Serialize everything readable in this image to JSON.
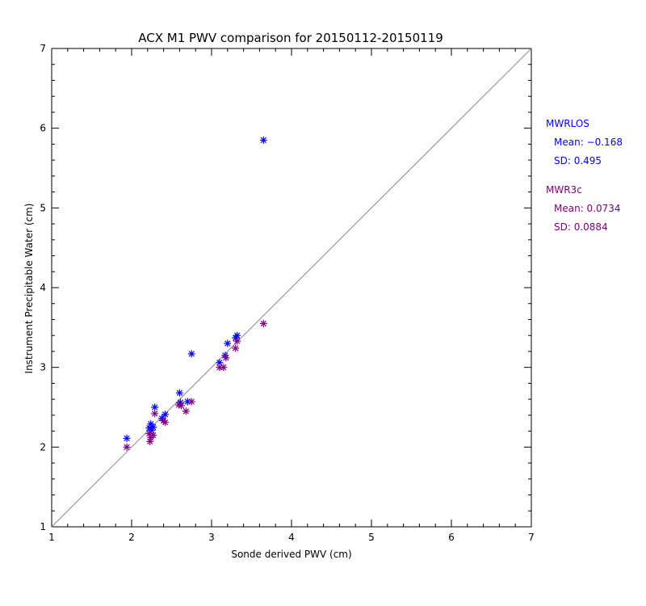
{
  "chart_data": {
    "type": "scatter",
    "title": "ACX M1 PWV comparison for 20150112-20150119",
    "xlabel": "Sonde derived PWV (cm)",
    "ylabel": "Instrument Precipitable Water (cm)",
    "xlim": [
      1,
      7
    ],
    "ylim": [
      1,
      7
    ],
    "xticks": [
      "1",
      "2",
      "3",
      "4",
      "5",
      "6",
      "7"
    ],
    "yticks": [
      "1",
      "2",
      "3",
      "4",
      "5",
      "6",
      "7"
    ],
    "reference_line": "1:1",
    "series": [
      {
        "name": "MWRLOS",
        "color": "#0000ff",
        "marker": "asterisk",
        "points": [
          [
            1.94,
            2.11
          ],
          [
            2.22,
            2.24
          ],
          [
            2.24,
            2.29
          ],
          [
            2.25,
            2.21
          ],
          [
            2.27,
            2.25
          ],
          [
            2.29,
            2.5
          ],
          [
            2.38,
            2.36
          ],
          [
            2.42,
            2.41
          ],
          [
            2.6,
            2.68
          ],
          [
            2.61,
            2.56
          ],
          [
            2.7,
            2.57
          ],
          [
            2.75,
            3.17
          ],
          [
            3.1,
            3.06
          ],
          [
            3.17,
            3.15
          ],
          [
            3.2,
            3.3
          ],
          [
            3.3,
            3.37
          ],
          [
            3.32,
            3.4
          ],
          [
            3.65,
            5.85
          ]
        ]
      },
      {
        "name": "MWR3c",
        "color": "#800080",
        "marker": "asterisk",
        "points": [
          [
            1.94,
            2.0
          ],
          [
            2.22,
            2.17
          ],
          [
            2.23,
            2.07
          ],
          [
            2.24,
            2.12
          ],
          [
            2.27,
            2.15
          ],
          [
            2.29,
            2.42
          ],
          [
            2.4,
            2.33
          ],
          [
            2.42,
            2.31
          ],
          [
            2.59,
            2.53
          ],
          [
            2.62,
            2.52
          ],
          [
            2.68,
            2.45
          ],
          [
            2.75,
            2.57
          ],
          [
            3.1,
            3.0
          ],
          [
            3.15,
            3.0
          ],
          [
            3.18,
            3.12
          ],
          [
            3.3,
            3.24
          ],
          [
            3.32,
            3.33
          ],
          [
            3.65,
            3.55
          ]
        ]
      }
    ]
  },
  "stats": {
    "mwrlos": {
      "name": "MWRLOS",
      "mean": "Mean: −0.168",
      "sd": "SD: 0.495",
      "color": "#0000ff"
    },
    "mwr3c": {
      "name": "MWR3c",
      "mean": "Mean: 0.0734",
      "sd": "SD: 0.0884",
      "color": "#800080"
    }
  }
}
